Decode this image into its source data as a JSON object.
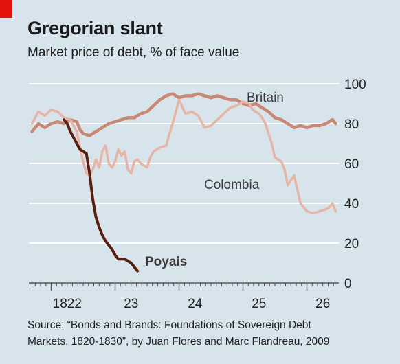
{
  "header": {
    "title": "Gregorian slant",
    "subtitle": "Market price of debt, % of face value"
  },
  "footer": {
    "source_line1": "Source: “Bonds and Brands: Foundations of Sovereign Debt",
    "source_line2": "Markets, 1820-1830”, by Juan Flores and Marc Flandreau, 2009"
  },
  "colors": {
    "background": "#d8e4eb",
    "gridline": "#ffffff",
    "britain": "#c98874",
    "colombia": "#e6b5a5",
    "poyais": "#5a1e10",
    "tag": "#e3120b"
  },
  "chart_data": {
    "type": "line",
    "title": "Gregorian slant",
    "subtitle": "Market price of debt, % of face value",
    "xlim": [
      1821.65,
      1826.5
    ],
    "ylim": [
      0,
      100
    ],
    "x_ticks": [
      {
        "value": 1822.25,
        "label": "1822"
      },
      {
        "value": 1823.25,
        "label": "23"
      },
      {
        "value": 1824.25,
        "label": "24"
      },
      {
        "value": 1825.25,
        "label": "25"
      },
      {
        "value": 1826.25,
        "label": "26"
      }
    ],
    "y_ticks": [
      0,
      20,
      40,
      60,
      80,
      100
    ],
    "grid": true,
    "series": [
      {
        "name": "Britain",
        "color": "#c98874",
        "width": 4.5,
        "x": [
          1821.7,
          1821.8,
          1821.9,
          1822.0,
          1822.1,
          1822.2,
          1822.3,
          1822.4,
          1822.45,
          1822.5,
          1822.6,
          1822.7,
          1822.8,
          1822.9,
          1823.0,
          1823.1,
          1823.2,
          1823.3,
          1823.4,
          1823.5,
          1823.6,
          1823.7,
          1823.8,
          1823.9,
          1824.0,
          1824.1,
          1824.2,
          1824.3,
          1824.4,
          1824.5,
          1824.6,
          1824.7,
          1824.8,
          1824.9,
          1825.0,
          1825.1,
          1825.2,
          1825.3,
          1825.4,
          1825.5,
          1825.6,
          1825.7,
          1825.8,
          1825.9,
          1826.0,
          1826.1,
          1826.2,
          1826.3,
          1826.35,
          1826.4,
          1826.45
        ],
        "y": [
          76,
          80,
          78,
          80,
          81,
          80,
          82,
          81,
          77,
          75,
          74,
          76,
          78,
          80,
          81,
          82,
          83,
          83,
          85,
          86,
          89,
          92,
          94,
          95,
          93,
          94,
          94,
          95,
          94,
          93,
          94,
          93,
          92,
          92,
          90,
          89,
          90,
          88,
          86,
          83,
          82,
          80,
          78,
          79,
          78,
          79,
          79,
          80,
          81,
          82,
          80
        ]
      },
      {
        "name": "Colombia",
        "color": "#e6b5a5",
        "width": 3.5,
        "x": [
          1821.7,
          1821.8,
          1821.9,
          1822.0,
          1822.1,
          1822.2,
          1822.3,
          1822.4,
          1822.45,
          1822.5,
          1822.55,
          1822.6,
          1822.65,
          1822.7,
          1822.75,
          1822.8,
          1822.85,
          1822.9,
          1822.95,
          1823.0,
          1823.05,
          1823.1,
          1823.15,
          1823.2,
          1823.25,
          1823.3,
          1823.35,
          1823.4,
          1823.5,
          1823.55,
          1823.6,
          1823.65,
          1823.7,
          1823.8,
          1823.85,
          1823.9,
          1824.0,
          1824.1,
          1824.2,
          1824.3,
          1824.4,
          1824.5,
          1824.6,
          1824.7,
          1824.8,
          1824.9,
          1825.0,
          1825.1,
          1825.15,
          1825.2,
          1825.25,
          1825.3,
          1825.35,
          1825.4,
          1825.45,
          1825.5,
          1825.55,
          1825.6,
          1825.65,
          1825.7,
          1825.8,
          1825.9,
          1826.0,
          1826.1,
          1826.2,
          1826.3,
          1826.35,
          1826.4,
          1826.45
        ],
        "y": [
          80,
          86,
          84,
          87,
          86,
          83,
          82,
          76,
          68,
          61,
          55,
          54,
          57,
          62,
          58,
          66,
          69,
          60,
          58,
          61,
          67,
          64,
          66,
          57,
          55,
          61,
          62,
          60,
          58,
          63,
          66,
          67,
          68,
          69,
          75,
          80,
          92,
          85,
          86,
          84,
          78,
          79,
          82,
          85,
          88,
          89,
          91,
          90,
          87,
          86,
          85,
          83,
          80,
          75,
          70,
          63,
          62,
          61,
          57,
          49,
          54,
          40,
          36,
          35,
          36,
          37,
          38,
          40,
          36
        ]
      },
      {
        "name": "Poyais",
        "color": "#5a1e10",
        "width": 4,
        "x": [
          1822.2,
          1822.25,
          1822.3,
          1822.35,
          1822.4,
          1822.45,
          1822.5,
          1822.55,
          1822.6,
          1822.65,
          1822.7,
          1822.75,
          1822.8,
          1822.85,
          1822.9,
          1822.95,
          1823.0,
          1823.05,
          1823.1,
          1823.15,
          1823.2,
          1823.25,
          1823.3,
          1823.35
        ],
        "y": [
          82,
          80,
          76,
          73,
          70,
          67,
          66,
          65,
          55,
          42,
          33,
          28,
          24,
          21,
          19,
          17,
          14,
          12,
          12,
          12,
          11,
          10,
          8,
          6
        ]
      }
    ],
    "labels": [
      {
        "text": "Britain",
        "series": "Britain"
      },
      {
        "text": "Colombia",
        "series": "Colombia"
      },
      {
        "text": "Poyais",
        "series": "Poyais"
      }
    ]
  }
}
